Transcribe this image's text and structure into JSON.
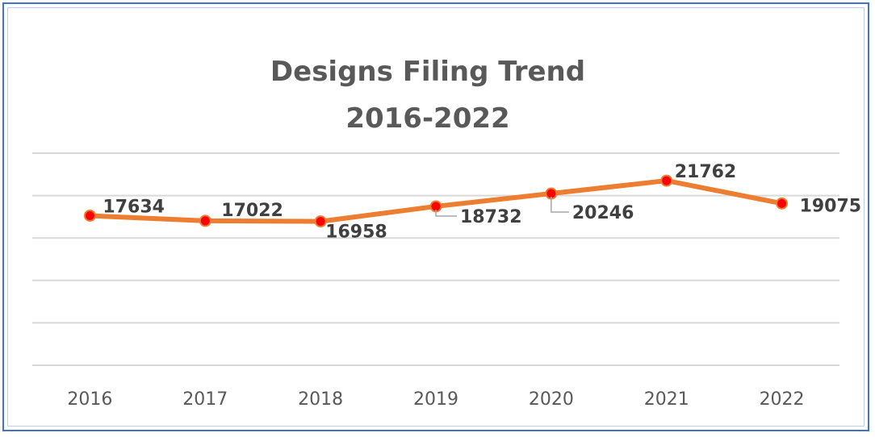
{
  "chart_data": {
    "type": "line",
    "title_lines": [
      "Designs Filing Trend",
      "2016-2022"
    ],
    "categories": [
      "2016",
      "2017",
      "2018",
      "2019",
      "2020",
      "2021",
      "2022"
    ],
    "series": [
      {
        "values": [
          17634,
          17022,
          16958,
          18732,
          20246,
          21762,
          19075
        ]
      }
    ],
    "data_labels": [
      "17634",
      "17022",
      "16958",
      "18732",
      "20246",
      "21762",
      "19075"
    ],
    "ylim": [
      0,
      25000
    ],
    "grid": true,
    "axis_labels_y_visible": false,
    "colors": {
      "line": "#ed7d31",
      "marker": "#ff0000",
      "grid": "#d9d9d9",
      "text": "#595959",
      "frame": "#4472c4"
    }
  }
}
